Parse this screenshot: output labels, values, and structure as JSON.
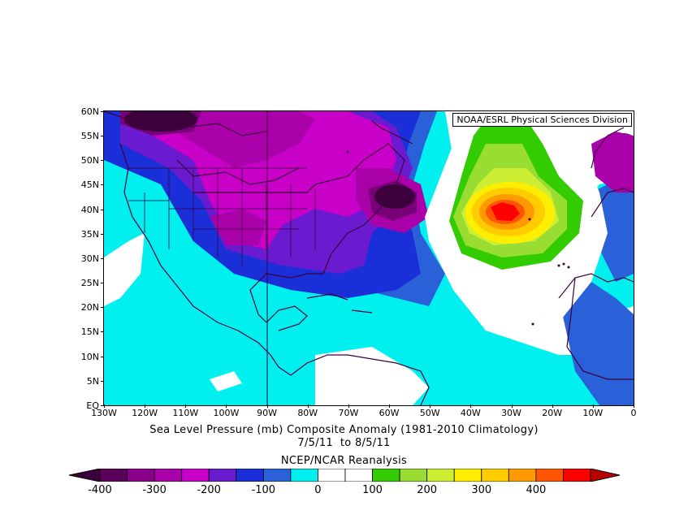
{
  "credit": "NOAA/ESRL Physical Sciences Division",
  "title_line1": "Sea Level Pressure (mb) Composite Anomaly (1981-2010 Climatology)",
  "title_line2": "7/5/11  to 8/5/11",
  "title_line3": "NCEP/NCAR Reanalysis",
  "lat_labels": [
    "60N",
    "55N",
    "50N",
    "45N",
    "40N",
    "35N",
    "30N",
    "25N",
    "20N",
    "15N",
    "10N",
    "5N",
    "EQ"
  ],
  "lon_labels": [
    "130W",
    "120W",
    "110W",
    "100W",
    "90W",
    "80W",
    "70W",
    "60W",
    "50W",
    "40W",
    "30W",
    "20W",
    "10W",
    "0"
  ],
  "colorbar": {
    "labels": [
      "-400",
      "-300",
      "-200",
      "-100",
      "0",
      "100",
      "200",
      "300",
      "400"
    ],
    "colors": [
      "#5a005a",
      "#8a008a",
      "#aa00aa",
      "#c800c8",
      "#6a1bd0",
      "#1a2fd8",
      "#2a60d8",
      "#00f0f0",
      "#ffffff",
      "#ffffff",
      "#33cc00",
      "#99dd33",
      "#ccee33",
      "#ffee00",
      "#ffcc00",
      "#ff9900",
      "#ff5500",
      "#ff0000"
    ],
    "end_low_color": "#3c003c",
    "end_high_color": "#bb0000"
  },
  "map_colors": {
    "strong_low": "#3c003c",
    "low1": "#7a007a",
    "low2": "#aa00aa",
    "low3": "#c800c8",
    "low4": "#6a1bd0",
    "low5": "#1a2fd8",
    "low6": "#2a60d8",
    "low7": "#00f0f0",
    "neutral": "#ffffff",
    "high1": "#33cc00",
    "high2": "#99dd33",
    "high3": "#ccee33",
    "high4": "#ffee00",
    "high5": "#ffcc00",
    "high6": "#ff9900",
    "high7": "#ff5500",
    "high8": "#ff0000"
  }
}
